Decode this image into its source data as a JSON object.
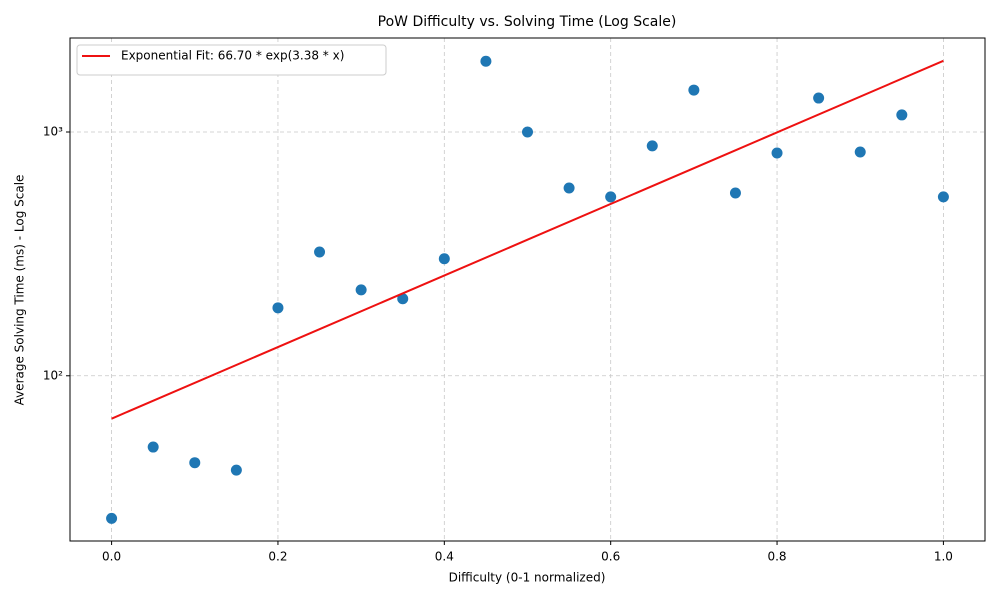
{
  "chart_data": {
    "type": "scatter",
    "title": "PoW Difficulty vs. Solving Time (Log Scale)",
    "x_label": "Difficulty (0-1 normalized)",
    "y_label": "Average Solving Time (ms) - Log Scale",
    "y_log": true,
    "grid": true,
    "legend": "upper left",
    "xlim": [
      -0.05,
      1.05
    ],
    "xticks": [
      {
        "value": 0,
        "label": "0.0"
      },
      0.2,
      0.4,
      0.6,
      0.8,
      {
        "value": 1,
        "label": "1.0"
      }
    ],
    "ylim": [
      21,
      2430
    ],
    "yticks": [
      {
        "value": 100,
        "label": "10²"
      },
      {
        "value": 1000,
        "label": "10³"
      }
    ],
    "series": [
      {
        "type": "scatter",
        "color": "#1f77b4",
        "x": [
          0,
          0.05,
          0.1,
          0.15,
          0.2,
          0.25,
          0.3,
          0.35,
          0.4,
          0.45,
          0.5,
          0.55,
          0.6,
          0.65,
          0.7,
          0.75,
          0.8,
          0.85,
          0.9,
          0.95,
          1.0
        ],
        "values": [
          26,
          51,
          44,
          41,
          190,
          322,
          225,
          207,
          302,
          1950,
          1000,
          589,
          542,
          877,
          1486,
          562,
          820,
          1378,
          828,
          1175,
          542
        ]
      },
      {
        "type": "line",
        "name": "Exponential Fit: 66.70 * exp(3.38 * x)",
        "color": "#ee1111",
        "x": [
          0,
          0.25,
          0.5,
          0.75,
          1.0
        ],
        "values": [
          66.7,
          155.3,
          361.5,
          841.5,
          1958.9
        ]
      }
    ]
  }
}
